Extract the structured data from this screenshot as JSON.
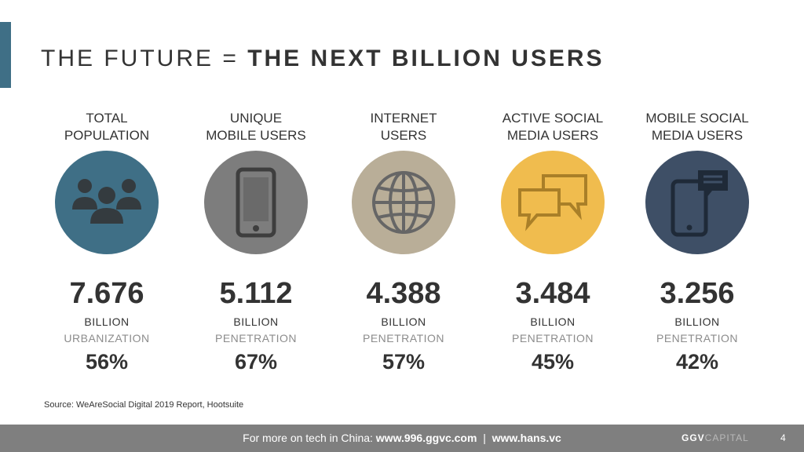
{
  "title": {
    "light": "THE FUTURE = ",
    "bold": "THE NEXT BILLION USERS"
  },
  "stats": [
    {
      "label_lines": [
        "TOTAL",
        "POPULATION"
      ],
      "icon": "people-icon",
      "color": "#3f6f86",
      "value": "7.676",
      "unit": "BILLION",
      "sublabel": "URBANIZATION",
      "percent": "56%"
    },
    {
      "label_lines": [
        "UNIQUE",
        "MOBILE USERS"
      ],
      "icon": "mobile-phone-icon",
      "color": "#7d7d7d",
      "value": "5.112",
      "unit": "BILLION",
      "sublabel": "PENETRATION",
      "percent": "67%"
    },
    {
      "label_lines": [
        "INTERNET",
        "USERS"
      ],
      "icon": "globe-icon",
      "color": "#b9ae98",
      "value": "4.388",
      "unit": "BILLION",
      "sublabel": "PENETRATION",
      "percent": "57%"
    },
    {
      "label_lines": [
        "ACTIVE SOCIAL",
        "MEDIA USERS"
      ],
      "icon": "chat-bubbles-icon",
      "color": "#f0bc4e",
      "value": "3.484",
      "unit": "BILLION",
      "sublabel": "PENETRATION",
      "percent": "45%"
    },
    {
      "label_lines": [
        "MOBILE SOCIAL",
        "MEDIA USERS"
      ],
      "icon": "mobile-chat-icon",
      "color": "#3e4f66",
      "value": "3.256",
      "unit": "BILLION",
      "sublabel": "PENETRATION",
      "percent": "42%"
    }
  ],
  "source": "Source: WeAreSocial Digital 2019 Report, Hootsuite",
  "footer": {
    "prefix": "For more on tech in China: ",
    "link1": "www.996.ggvc.com",
    "separator": "  |  ",
    "link2": "www.hans.vc",
    "logo_bold": "GGV",
    "logo_faint": "CAPITAL",
    "page_number": "4"
  },
  "colors": {
    "accent": "#3f6f86",
    "footer_bg": "#7f7f7f",
    "icon_dark": "#333333"
  }
}
